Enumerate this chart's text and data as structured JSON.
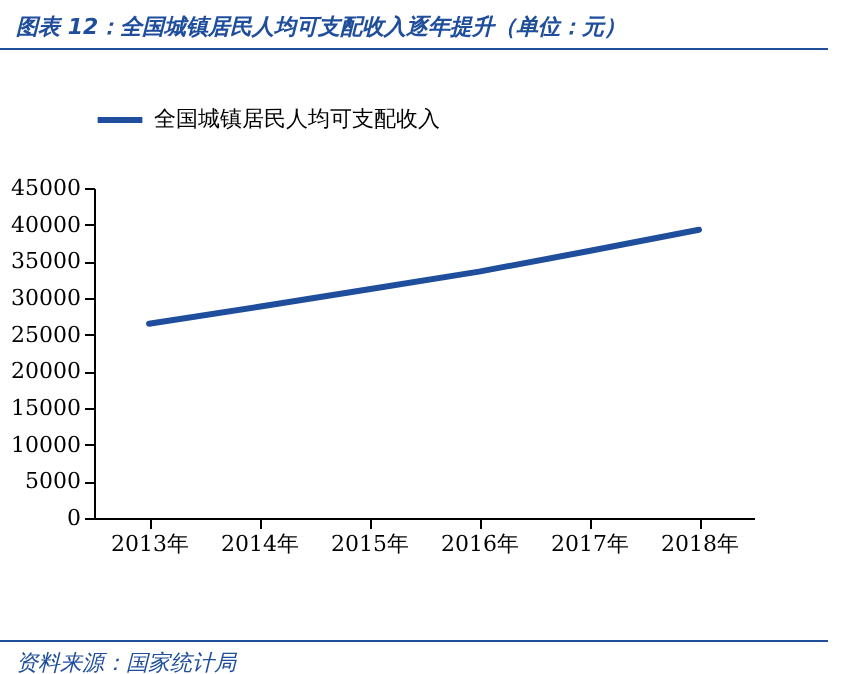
{
  "chart_data": {
    "type": "line",
    "title": "图表 12：全国城镇居民人均可支配收入逐年提升（单位：元）",
    "categories": [
      "2013年",
      "2014年",
      "2015年",
      "2016年",
      "2017年",
      "2018年"
    ],
    "series": [
      {
        "name": "全国城镇居民人均可支配收入",
        "color": "#1f4e9c",
        "values": [
          26500,
          28800,
          31200,
          33600,
          36400,
          39300
        ]
      }
    ],
    "ylim": [
      0,
      45000
    ],
    "yticks": [
      0,
      5000,
      10000,
      15000,
      20000,
      25000,
      30000,
      35000,
      40000,
      45000
    ],
    "legend": "top left",
    "grid": false,
    "marker": "none",
    "line_style": "solid",
    "annotations": [
      "资料来源：国家统计局"
    ]
  }
}
